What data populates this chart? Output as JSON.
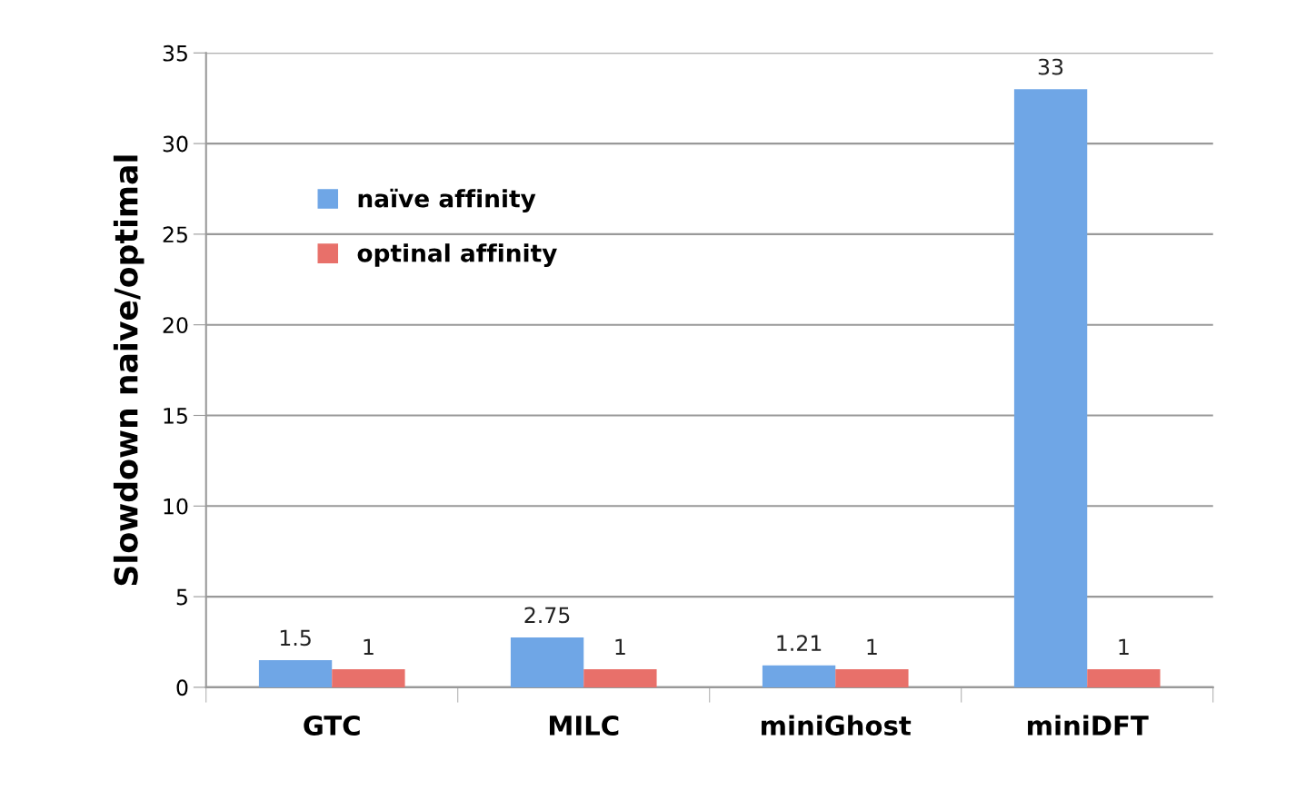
{
  "chart_data": {
    "type": "bar",
    "ylabel": "Slowdown naive/optimal",
    "categories": [
      "GTC",
      "MILC",
      "miniGhost",
      "miniDFT"
    ],
    "series": [
      {
        "name": "naïve affinity",
        "color": "#6fa6e6",
        "values": [
          1.5,
          2.75,
          1.21,
          33
        ]
      },
      {
        "name": "optinal affinity",
        "color": "#e8706a",
        "values": [
          1,
          1,
          1,
          1
        ]
      }
    ],
    "ylim": [
      0,
      35
    ],
    "yticks": [
      0,
      5,
      10,
      15,
      20,
      25,
      30,
      35
    ],
    "grid": "y",
    "legend": "top left",
    "data_labels": true
  }
}
